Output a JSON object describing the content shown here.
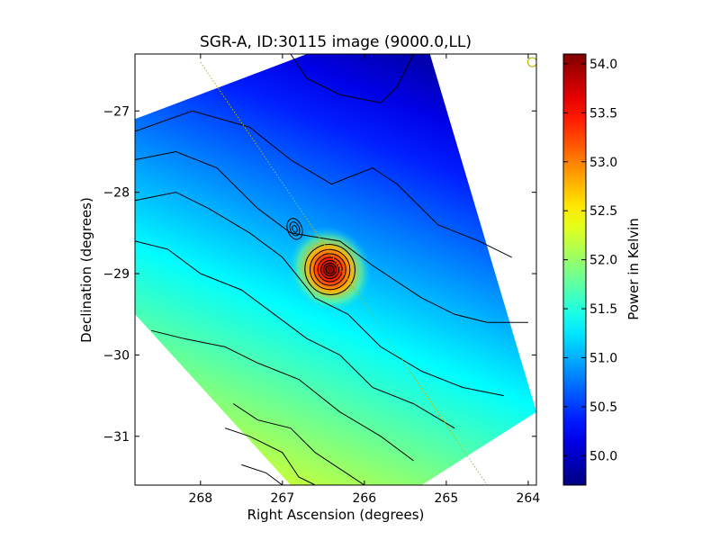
{
  "chart_data": {
    "type": "heatmap",
    "title": "SGR-A, ID:30115 image (9000.0,LL)",
    "xlabel": "Right Ascension (degrees)",
    "ylabel": "Declination (degrees)",
    "xlim": [
      268.8,
      263.9
    ],
    "ylim": [
      -31.6,
      -26.3
    ],
    "x_ticks": [
      268,
      267,
      266,
      265,
      264
    ],
    "y_ticks": [
      -27,
      -28,
      -29,
      -30,
      -31
    ],
    "colorbar": {
      "label": "Power in Kelvin",
      "range": [
        49.7,
        54.1
      ],
      "ticks": [
        50.0,
        50.5,
        51.0,
        51.5,
        52.0,
        52.5,
        53.0,
        53.5,
        54.0
      ],
      "tick_labels": [
        "50.0",
        "50.5",
        "51.0",
        "51.5",
        "52.0",
        "52.5",
        "53.0",
        "53.5",
        "54.0"
      ],
      "colormap": "jet"
    },
    "map_footprint": [
      {
        "ra": 268.8,
        "dec": -27.1
      },
      {
        "ra": 266.7,
        "dec": -26.3
      },
      {
        "ra": 265.2,
        "dec": -26.3
      },
      {
        "ra": 263.9,
        "dec": -30.7
      },
      {
        "ra": 265.3,
        "dec": -31.6
      },
      {
        "ra": 266.9,
        "dec": -31.6
      },
      {
        "ra": 268.8,
        "dec": -29.5
      }
    ],
    "gradient": {
      "high_point": {
        "ra": 267.6,
        "dec": -31.6,
        "value": 52.3
      },
      "low_point": {
        "ra": 265.5,
        "dec": -26.3,
        "value": 49.9
      }
    },
    "peak": {
      "ra": 266.42,
      "dec": -28.95,
      "value": 54.0
    },
    "secondary_peak": {
      "ra": 266.85,
      "dec": -28.45
    },
    "galactic_plane_line": [
      {
        "ra": 268.0,
        "dec": -26.4
      },
      {
        "ra": 264.5,
        "dec": -31.6
      }
    ],
    "beam_marker": {
      "ra": 263.95,
      "dec": -26.4
    },
    "contours": [
      {
        "level": 50.2,
        "points": [
          [
            266.9,
            -26.3
          ],
          [
            266.7,
            -26.6
          ],
          [
            266.3,
            -26.8
          ],
          [
            265.8,
            -26.9
          ],
          [
            265.6,
            -26.7
          ],
          [
            265.4,
            -26.3
          ]
        ]
      },
      {
        "level": 50.4,
        "points": [
          [
            268.8,
            -27.25
          ],
          [
            268.1,
            -27.0
          ],
          [
            267.4,
            -27.2
          ],
          [
            266.9,
            -27.6
          ],
          [
            266.4,
            -27.9
          ],
          [
            265.9,
            -27.7
          ],
          [
            265.6,
            -27.9
          ],
          [
            265.1,
            -28.4
          ],
          [
            264.6,
            -28.6
          ],
          [
            264.2,
            -28.8
          ]
        ]
      },
      {
        "level": 50.6,
        "points": [
          [
            268.8,
            -27.6
          ],
          [
            268.3,
            -27.5
          ],
          [
            267.8,
            -27.7
          ],
          [
            267.3,
            -28.2
          ],
          [
            266.9,
            -28.5
          ],
          [
            266.3,
            -28.6
          ],
          [
            265.9,
            -28.9
          ],
          [
            265.3,
            -29.3
          ],
          [
            264.9,
            -29.5
          ],
          [
            264.5,
            -29.6
          ],
          [
            264.0,
            -29.6
          ]
        ]
      },
      {
        "level": 50.8,
        "points": [
          [
            268.8,
            -28.1
          ],
          [
            268.3,
            -28.0
          ],
          [
            267.9,
            -28.2
          ],
          [
            267.4,
            -28.5
          ],
          [
            267.0,
            -28.8
          ],
          [
            266.6,
            -29.3
          ],
          [
            266.2,
            -29.5
          ],
          [
            265.8,
            -29.9
          ],
          [
            265.3,
            -30.2
          ],
          [
            264.8,
            -30.4
          ],
          [
            264.3,
            -30.5
          ]
        ]
      },
      {
        "level": 51.0,
        "points": [
          [
            268.8,
            -28.6
          ],
          [
            268.4,
            -28.7
          ],
          [
            268.0,
            -29.0
          ],
          [
            267.5,
            -29.2
          ],
          [
            267.1,
            -29.5
          ],
          [
            266.7,
            -29.8
          ],
          [
            266.3,
            -30.0
          ],
          [
            265.9,
            -30.4
          ],
          [
            265.4,
            -30.6
          ],
          [
            264.9,
            -30.9
          ]
        ]
      },
      {
        "level": 51.2,
        "points": [
          [
            268.6,
            -29.7
          ],
          [
            268.2,
            -29.8
          ],
          [
            267.7,
            -29.9
          ],
          [
            267.3,
            -30.1
          ],
          [
            266.8,
            -30.3
          ],
          [
            266.3,
            -30.7
          ],
          [
            265.8,
            -31.0
          ],
          [
            265.4,
            -31.3
          ]
        ]
      },
      {
        "level": 51.5,
        "points": [
          [
            267.6,
            -30.6
          ],
          [
            267.3,
            -30.8
          ],
          [
            266.9,
            -30.9
          ],
          [
            266.6,
            -31.2
          ],
          [
            266.3,
            -31.4
          ],
          [
            266.0,
            -31.6
          ]
        ]
      },
      {
        "level": 51.8,
        "points": [
          [
            267.7,
            -30.9
          ],
          [
            267.4,
            -31.0
          ],
          [
            267.0,
            -31.2
          ],
          [
            266.8,
            -31.5
          ],
          [
            266.6,
            -31.6
          ]
        ]
      },
      {
        "level": 52.1,
        "points": [
          [
            267.5,
            -31.35
          ],
          [
            267.2,
            -31.45
          ],
          [
            267.0,
            -31.6
          ]
        ]
      }
    ],
    "peak_rings": [
      {
        "rx": 0.55,
        "ry": 0.48
      },
      {
        "rx": 0.44,
        "ry": 0.38
      },
      {
        "rx": 0.35,
        "ry": 0.3
      },
      {
        "rx": 0.27,
        "ry": 0.23
      },
      {
        "rx": 0.2,
        "ry": 0.17
      },
      {
        "rx": 0.14,
        "ry": 0.12
      },
      {
        "rx": 0.09,
        "ry": 0.08
      }
    ],
    "grid": false
  }
}
